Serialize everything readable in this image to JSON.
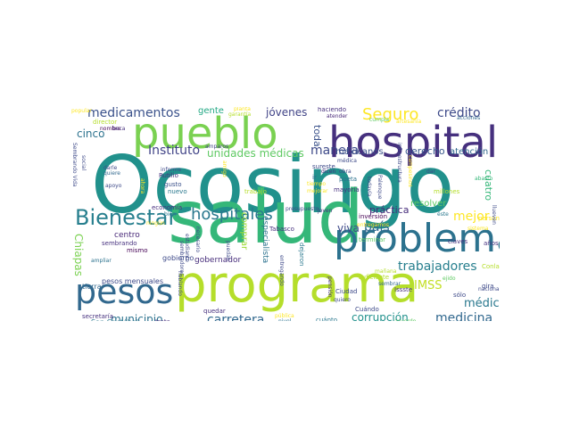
{
  "palette": {
    "dark_purple": "#46307e",
    "purple": "#482878",
    "blue": "#3e4a89",
    "steel": "#31688e",
    "teal": "#26828e",
    "teal_green": "#1f9e89",
    "green": "#35b779",
    "lime": "#6ece58",
    "yellow_green": "#b5de2b",
    "yellow": "#fde725"
  },
  "words": [
    {
      "id": "w-ocosingo",
      "text": "Ocosingo",
      "color": "#21918c",
      "orient": "h"
    },
    {
      "id": "w-salud",
      "text": "salud",
      "color": "#35b779",
      "orient": "h"
    },
    {
      "id": "w-programa",
      "text": "programa",
      "color": "#b5de2b",
      "orient": "h"
    },
    {
      "id": "w-hospital",
      "text": "hospital",
      "color": "#46307e",
      "orient": "h"
    },
    {
      "id": "w-pueblo",
      "text": "pueblo",
      "color": "#7ad151",
      "orient": "h"
    },
    {
      "id": "w-problema",
      "text": "problema",
      "color": "#2c728e",
      "orient": "h"
    },
    {
      "id": "w-pesos",
      "text": "pesos",
      "color": "#31688e",
      "orient": "h"
    },
    {
      "id": "w-bienestar",
      "text": "Bienestar",
      "color": "#277f8e",
      "orient": "h"
    },
    {
      "id": "w-hospitales",
      "text": "hospitales",
      "color": "#2a788e",
      "orient": "h"
    },
    {
      "id": "w-seguro",
      "text": "Seguro",
      "color": "#fde725",
      "orient": "h"
    },
    {
      "id": "w-credito",
      "text": "crédito",
      "color": "#3e4a89",
      "orient": "h"
    },
    {
      "id": "w-medicamentos",
      "text": "medicamentos",
      "color": "#3b528b",
      "orient": "h"
    },
    {
      "id": "w-jovenes",
      "text": "jóvenes",
      "color": "#414487",
      "orient": "h"
    },
    {
      "id": "w-trabajadores",
      "text": "trabajadores",
      "color": "#277f8e",
      "orient": "h"
    },
    {
      "id": "w-pais",
      "text": "país",
      "color": "#31688e",
      "orient": "h"
    },
    {
      "id": "w-viva",
      "text": "viva",
      "color": "#3e4a89",
      "orient": "h"
    },
    {
      "id": "w-mejor",
      "text": "mejor",
      "color": "#fde725",
      "orient": "h"
    },
    {
      "id": "w-practica",
      "text": "práctica",
      "color": "#472d7b",
      "orient": "h"
    },
    {
      "id": "w-medicina",
      "text": "medicina",
      "color": "#31688e",
      "orient": "h"
    },
    {
      "id": "w-medico",
      "text": "médico",
      "color": "#2a788e",
      "orient": "h"
    },
    {
      "id": "w-imss",
      "text": "IMSS",
      "color": "#c2df23",
      "orient": "h"
    },
    {
      "id": "w-manera",
      "text": "manera",
      "color": "#3e4a89",
      "orient": "h"
    },
    {
      "id": "w-instituto",
      "text": "Instituto",
      "color": "#414487",
      "orient": "h"
    },
    {
      "id": "w-carretera",
      "text": "carretera",
      "color": "#31688e",
      "orient": "h"
    },
    {
      "id": "w-municipio",
      "text": "municipio",
      "color": "#2c728e",
      "orient": "h"
    },
    {
      "id": "w-corrupcion",
      "text": "corrupción",
      "color": "#21918c",
      "orient": "h"
    },
    {
      "id": "w-unidades",
      "text": "unidades médicas",
      "color": "#5ec962",
      "orient": "h"
    },
    {
      "id": "w-cinco",
      "text": "cinco",
      "color": "#2c728e",
      "orient": "h"
    },
    {
      "id": "w-chiapas",
      "text": "Chiapas",
      "color": "#7ad151",
      "orient": "v"
    },
    {
      "id": "w-toda",
      "text": "toda",
      "color": "#3b528b",
      "orient": "v"
    },
    {
      "id": "w-cuatro",
      "text": "cuatro",
      "color": "#35b779",
      "orient": "v"
    },
    {
      "id": "w-gente",
      "text": "gente",
      "color": "#22a884",
      "orient": "h"
    },
    {
      "id": "w-derecho",
      "text": "derecho",
      "color": "#38588c",
      "orient": "h"
    },
    {
      "id": "w-atencion",
      "text": "atención",
      "color": "#31688e",
      "orient": "h"
    },
    {
      "id": "w-mexicanos",
      "text": "mexicanos",
      "color": "#3b528b",
      "orient": "h"
    },
    {
      "id": "w-resolver",
      "text": "resolver",
      "color": "#5ec962",
      "orient": "h"
    },
    {
      "id": "w-centro",
      "text": "centro",
      "color": "#482878",
      "orient": "h"
    },
    {
      "id": "w-comprar",
      "text": "comprar",
      "color": "#a0da39",
      "orient": "v"
    },
    {
      "id": "w-especialista",
      "text": "especialista",
      "color": "#2c728e",
      "orient": "v"
    },
    {
      "id": "w-gobernador",
      "text": "gobernador",
      "color": "#472d7b",
      "orient": "h"
    },
    {
      "id": "w-gobierno",
      "text": "gobierno",
      "color": "#3e4a89",
      "orient": "h"
    },
    {
      "id": "w-sembrando",
      "text": "sembrando",
      "color": "#46307e",
      "orient": "h"
    },
    {
      "id": "w-pesos-mensuales",
      "text": "pesos mensuales",
      "color": "#3e4a89",
      "orient": "h"
    },
    {
      "id": "w-san-cristobal",
      "text": "San Cristóbal",
      "color": "#2a788e",
      "orient": "h"
    },
    {
      "id": "w-tierra",
      "text": "tierra",
      "color": "#31688e",
      "orient": "h"
    },
    {
      "id": "w-secretaria",
      "text": "secretaría",
      "color": "#46307e",
      "orient": "h"
    },
    {
      "id": "w-mismo",
      "text": "mismo",
      "color": "#440154",
      "orient": "h"
    },
    {
      "id": "w-economia",
      "text": "economía",
      "color": "#46307e",
      "orient": "h"
    },
    {
      "id": "w-nuevo",
      "text": "nuevo",
      "color": "#2a788e",
      "orient": "h"
    },
    {
      "id": "w-gusto",
      "text": "gusto",
      "color": "#3b528b",
      "orient": "h"
    },
    {
      "id": "w-rutilio",
      "text": "Rutilio",
      "color": "#46307e",
      "orient": "h"
    },
    {
      "id": "w-informe",
      "text": "informe",
      "color": "#3e4a89",
      "orient": "h"
    },
    {
      "id": "w-amparos",
      "text": "amparos",
      "color": "#414487",
      "orient": "h"
    },
    {
      "id": "w-director",
      "text": "director",
      "color": "#b5de2b",
      "orient": "h"
    },
    {
      "id": "w-nombre",
      "text": "nombre",
      "color": "#440154",
      "orient": "h"
    },
    {
      "id": "w-beca",
      "text": "beca",
      "color": "#46307e",
      "orient": "h"
    },
    {
      "id": "w-popular",
      "text": "popular",
      "color": "#fde725",
      "orient": "h"
    },
    {
      "id": "w-planta",
      "text": "planta",
      "color": "#fde725",
      "orient": "h"
    },
    {
      "id": "w-garantia",
      "text": "garantía",
      "color": "#b5de2b",
      "orient": "h"
    },
    {
      "id": "w-haciendo",
      "text": "haciendo",
      "color": "#46307e",
      "orient": "h"
    },
    {
      "id": "w-atender",
      "text": "atender",
      "color": "#482878",
      "orient": "h"
    },
    {
      "id": "w-cumpla",
      "text": "cumpla",
      "color": "#5ec962",
      "orient": "h"
    },
    {
      "id": "w-artesania",
      "text": "artesanía",
      "color": "#fde725",
      "orient": "h"
    },
    {
      "id": "w-acciones",
      "text": "acciones",
      "color": "#31688e",
      "orient": "h"
    },
    {
      "id": "w-sureste",
      "text": "sureste",
      "color": "#3e4a89",
      "orient": "h"
    },
    {
      "id": "w-ir",
      "text": "ir",
      "color": "#31688e",
      "orient": "h"
    },
    {
      "id": "w-joven",
      "text": "joven",
      "color": "#46307e",
      "orient": "h"
    },
    {
      "id": "w-obra",
      "text": "obra",
      "color": "#3e4a89",
      "orient": "h"
    },
    {
      "id": "w-medica",
      "text": "médica",
      "color": "#3e4a89",
      "orient": "h"
    },
    {
      "id": "w-poeta",
      "text": "poeta",
      "color": "#2c728e",
      "orient": "h"
    },
    {
      "id": "w-mayoria",
      "text": "mayoría",
      "color": "#46307e",
      "orient": "h"
    },
    {
      "id": "w-tiempo",
      "text": "tiempo",
      "color": "#fde725",
      "orient": "h"
    },
    {
      "id": "w-mejorar",
      "text": "mejorar",
      "color": "#fde725",
      "orient": "h"
    },
    {
      "id": "w-trabajo",
      "text": "trabajo",
      "color": "#b5de2b",
      "orient": "h"
    },
    {
      "id": "w-presupuesto",
      "text": "presupuesto",
      "color": "#3e4a89",
      "orient": "h"
    },
    {
      "id": "w-inversion",
      "text": "inversión",
      "color": "#440154",
      "orient": "h"
    },
    {
      "id": "w-entregamos",
      "text": "entregamos",
      "color": "#fde725",
      "orient": "h"
    },
    {
      "id": "w-millones",
      "text": "millones",
      "color": "#b5de2b",
      "orient": "h"
    },
    {
      "id": "w-dar",
      "text": "dar",
      "color": "#3e4a89",
      "orient": "h"
    },
    {
      "id": "w-abasto",
      "text": "abasto",
      "color": "#35b779",
      "orient": "h"
    },
    {
      "id": "w-este",
      "text": "éste",
      "color": "#2a788e",
      "orient": "h"
    },
    {
      "id": "w-personal",
      "text": "personal",
      "color": "#fde725",
      "orient": "h"
    },
    {
      "id": "w-anos",
      "text": "años",
      "color": "#46307e",
      "orient": "h"
    },
    {
      "id": "w-claves",
      "text": "claves",
      "color": "#46307e",
      "orient": "h"
    },
    {
      "id": "w-terminar",
      "text": "terminar",
      "color": "#5ec962",
      "orient": "h"
    },
    {
      "id": "w-tabasco",
      "text": "Tabasco",
      "color": "#46307e",
      "orient": "h"
    },
    {
      "id": "w-dejaron",
      "text": "dejaron",
      "color": "#2a788e",
      "orient": "v"
    },
    {
      "id": "w-entregando",
      "text": "entregando",
      "color": "#3e4a89",
      "orient": "v"
    },
    {
      "id": "w-pension",
      "text": "pensión",
      "color": "#46307e",
      "orient": "v"
    },
    {
      "id": "w-manana",
      "text": "mañana",
      "color": "#b5de2b",
      "orient": "h"
    },
    {
      "id": "w-ciudad",
      "text": "Ciudad",
      "color": "#3e4a89",
      "orient": "h"
    },
    {
      "id": "w-suficiente",
      "text": "suficiente",
      "color": "#b5de2b",
      "orient": "h"
    },
    {
      "id": "w-quiero",
      "text": "quiero",
      "color": "#3e4a89",
      "orient": "h"
    },
    {
      "id": "w-cuando",
      "text": "Cuándo",
      "color": "#3e4a89",
      "orient": "h"
    },
    {
      "id": "w-acuerdo",
      "text": "acuerdo",
      "color": "#5ec962",
      "orient": "h"
    },
    {
      "id": "w-veces",
      "text": "veces",
      "color": "#3e4a89",
      "orient": "h"
    },
    {
      "id": "w-issste",
      "text": "Issste",
      "color": "#46307e",
      "orient": "h"
    },
    {
      "id": "w-sembrar",
      "text": "sembrar",
      "color": "#31688e",
      "orient": "h"
    },
    {
      "id": "w-ejido",
      "text": "ejido",
      "color": "#5ec962",
      "orient": "h"
    },
    {
      "id": "w-solo",
      "text": "sólo",
      "color": "#3e4a89",
      "orient": "h"
    },
    {
      "id": "w-nacional",
      "text": "nacional",
      "color": "#3e4a89",
      "orient": "h"
    },
    {
      "id": "w-gira",
      "text": "gira",
      "color": "#3e4a89",
      "orient": "h"
    },
    {
      "id": "w-conlamar",
      "text": "Conlamar",
      "color": "#b5de2b",
      "orient": "h"
    },
    {
      "id": "w-cuanto",
      "text": "cuánto",
      "color": "#2a788e",
      "orient": "h"
    },
    {
      "id": "w-quedar",
      "text": "quedar",
      "color": "#46307e",
      "orient": "h"
    },
    {
      "id": "w-publica",
      "text": "pública",
      "color": "#fde725",
      "orient": "h"
    },
    {
      "id": "w-nivel",
      "text": "nivel",
      "color": "#2c728e",
      "orient": "h"
    },
    {
      "id": "w-trata",
      "text": "trata",
      "color": "#46307e",
      "orient": "h"
    },
    {
      "id": "w-hablando",
      "text": "hablando",
      "color": "#3e4a89",
      "orient": "v"
    },
    {
      "id": "w-puedan",
      "text": "puedan",
      "color": "#3e4a89",
      "orient": "v"
    },
    {
      "id": "w-sembradores",
      "text": "sembradores",
      "color": "#3e4a89",
      "orient": "v"
    },
    {
      "id": "w-ningun",
      "text": "ningún",
      "color": "#fde725",
      "orient": "h"
    },
    {
      "id": "w-ampliar",
      "text": "ampliar",
      "color": "#2c728e",
      "orient": "h"
    },
    {
      "id": "w-necesario",
      "text": "necesario",
      "color": "#3e4a89",
      "orient": "v"
    },
    {
      "id": "w-bien",
      "text": "bien",
      "color": "#2a788e",
      "orient": "h"
    },
    {
      "id": "w-estudiante",
      "text": "estudiante",
      "color": "#3e4a89",
      "orient": "v"
    },
    {
      "id": "w-social",
      "text": "social",
      "color": "#3e4a89",
      "orient": "v"
    },
    {
      "id": "w-sembrando-vida",
      "text": "Sembrando Vida",
      "color": "#3e4a89",
      "orient": "v"
    },
    {
      "id": "w-darle",
      "text": "darle",
      "color": "#3e4a89",
      "orient": "h"
    },
    {
      "id": "w-quiere",
      "text": "quiere",
      "color": "#31688e",
      "orient": "h"
    },
    {
      "id": "w-apoyo",
      "text": "apoyo",
      "color": "#3e4a89",
      "orient": "h"
    },
    {
      "id": "w-amigo",
      "text": "amigo",
      "color": "#fde725",
      "orient": "v"
    },
    {
      "id": "w-ahora",
      "text": "ahora",
      "color": "#fde725",
      "orient": "v"
    },
    {
      "id": "w-todavia",
      "text": "todavía",
      "color": "#3e4a89",
      "orient": "v"
    },
    {
      "id": "w-palenque",
      "text": "Palenque",
      "color": "#3e4a89",
      "orient": "v"
    },
    {
      "id": "w-infraestructura",
      "text": "infraestructura",
      "color": "#3e4a89",
      "orient": "v"
    },
    {
      "id": "w-llueven",
      "text": "llueven",
      "color": "#3e4a89",
      "orient": "v"
    },
    {
      "id": "w-sistema",
      "text": "sistema",
      "color": "#fde725",
      "orient": "h"
    },
    {
      "id": "w-dicen",
      "text": "dicen",
      "color": "#46307e",
      "orient": "h"
    },
    {
      "id": "w-campesinos",
      "text": "campesinos",
      "color": "#fde725",
      "orient": "v"
    }
  ]
}
